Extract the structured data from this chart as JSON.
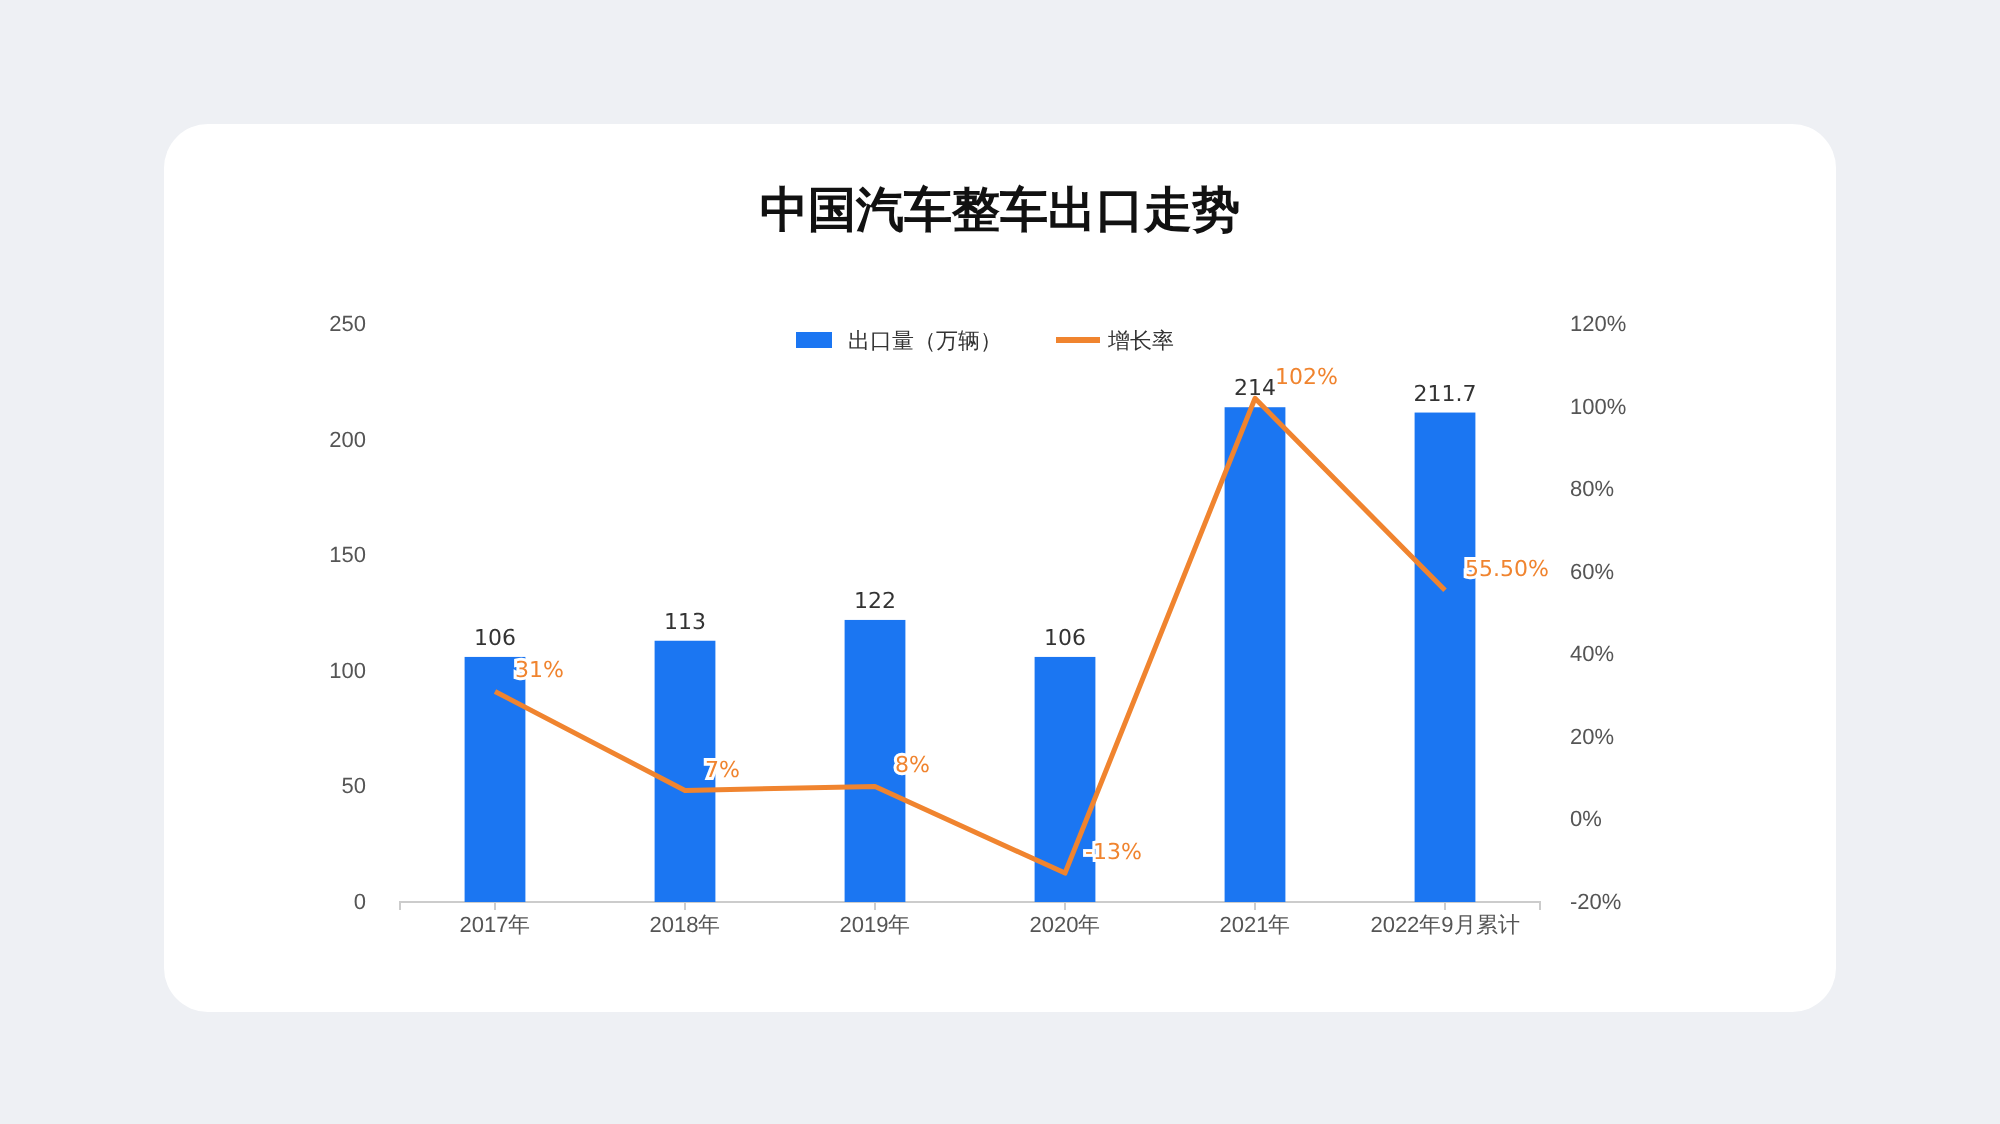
{
  "chart_data": {
    "type": "bar",
    "title": "中国汽车整车出口走势",
    "categories": [
      "2017年",
      "2018年",
      "2019年",
      "2020年",
      "2021年",
      "2022年9月累计"
    ],
    "series": [
      {
        "name": "出口量（万辆）",
        "color": "#1b76f2",
        "values": [
          106,
          113,
          122,
          106,
          214,
          211.7
        ],
        "value_labels": [
          "106",
          "113",
          "122",
          "106",
          "214",
          "211.7"
        ]
      },
      {
        "name": "增长率",
        "type": "line",
        "axis": "y2",
        "color": "#f0842f",
        "values": [
          31,
          7,
          8,
          -13,
          102,
          55.5
        ],
        "value_labels": [
          "31%",
          "7%",
          "8%",
          "-13%",
          "102%",
          "55.50%"
        ]
      }
    ],
    "ylim": [
      0,
      250
    ],
    "yticks": [
      0,
      50,
      100,
      150,
      200,
      250
    ],
    "y2lim": [
      -20,
      120
    ],
    "y2ticks": [
      {
        "value": -20,
        "label": "-20%"
      },
      {
        "value": 0,
        "label": "0%"
      },
      {
        "value": 20,
        "label": "20%"
      },
      {
        "value": 40,
        "label": "40%"
      },
      {
        "value": 60,
        "label": "60%"
      },
      {
        "value": 80,
        "label": "80%"
      },
      {
        "value": 100,
        "label": "100%"
      },
      {
        "value": 120,
        "label": "120%"
      }
    ],
    "legend": "top",
    "grid": false,
    "marker": "none",
    "line_style": "solid"
  }
}
